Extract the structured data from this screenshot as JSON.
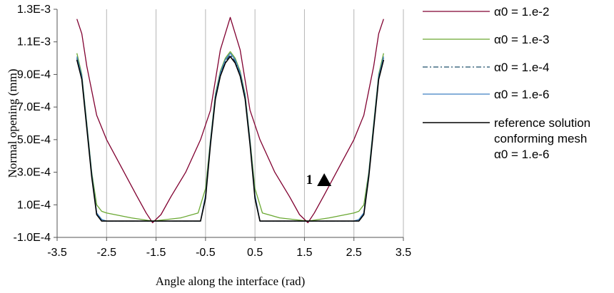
{
  "chart_data": {
    "type": "line",
    "title": "",
    "xlabel": "Angle along the interface (rad)",
    "ylabel": "Normal opening (mm)",
    "xlim": [
      -3.5,
      3.5
    ],
    "ylim": [
      -0.0001,
      0.0013
    ],
    "x_ticks": [
      -3.5,
      -2.5,
      -1.5,
      -0.5,
      0.5,
      1.5,
      2.5,
      3.5
    ],
    "x_tick_labels": [
      "-3.5",
      "-2.5",
      "-1.5",
      "-0.5",
      "0.5",
      "1.5",
      "2.5",
      "3.5"
    ],
    "y_ticks": [
      -0.0001,
      0.0001,
      0.0003,
      0.0005,
      0.0007,
      0.0009,
      0.0011,
      0.0013
    ],
    "y_tick_labels": [
      "-1.0E-4",
      "1.0E-4",
      "3.0E-4",
      "5.0E-4",
      "7.0E-4",
      "9.0E-4",
      "1.1E-3",
      "1.3E-3"
    ],
    "grid": {
      "x": true,
      "y": false
    },
    "legend_position": "right",
    "annotation": {
      "label": "1",
      "x": 1.9,
      "y": 0.00025,
      "marker": "triangle"
    },
    "series": [
      {
        "name": "α0 = 1.e-2",
        "color": "#800030",
        "dash": "solid",
        "x": [
          -3.1,
          -3.0,
          -2.9,
          -2.8,
          -2.7,
          -2.5,
          -2.2,
          -1.9,
          -1.7,
          -1.571,
          -1.4,
          -1.2,
          -0.9,
          -0.6,
          -0.4,
          -0.2,
          0,
          0.2,
          0.4,
          0.6,
          0.9,
          1.2,
          1.4,
          1.571,
          1.7,
          1.9,
          2.2,
          2.5,
          2.7,
          2.8,
          2.9,
          3.0,
          3.1
        ],
        "y": [
          0.00124,
          0.00115,
          0.00095,
          0.0008,
          0.00065,
          0.0005,
          0.00033,
          0.00016,
          5e-05,
          -1e-05,
          4e-05,
          0.00015,
          0.0003,
          0.0005,
          0.00068,
          0.00105,
          0.00125,
          0.00105,
          0.00068,
          0.0005,
          0.0003,
          0.00015,
          4e-05,
          -1e-05,
          5e-05,
          0.00016,
          0.00033,
          0.0005,
          0.00065,
          0.0008,
          0.00095,
          0.00115,
          0.00124
        ]
      },
      {
        "name": "α0 = 1.e-3",
        "color": "#6aa832",
        "dash": "solid",
        "x": [
          -3.1,
          -3.0,
          -2.9,
          -2.8,
          -2.7,
          -2.6,
          -2.5,
          -2.0,
          -1.571,
          -1.0,
          -0.65,
          -0.5,
          -0.4,
          -0.3,
          -0.2,
          -0.1,
          0,
          0.1,
          0.2,
          0.3,
          0.4,
          0.5,
          0.65,
          1.0,
          1.571,
          2.0,
          2.5,
          2.6,
          2.7,
          2.8,
          2.9,
          3.0,
          3.1
        ],
        "y": [
          0.00103,
          0.0009,
          0.0006,
          0.0003,
          0.0001,
          6e-05,
          5e-05,
          2e-05,
          0.0,
          2e-05,
          5e-05,
          0.0002,
          0.0005,
          0.00078,
          0.00092,
          0.001,
          0.00104,
          0.001,
          0.00092,
          0.00078,
          0.0005,
          0.0002,
          5e-05,
          2e-05,
          0.0,
          2e-05,
          5e-05,
          6e-05,
          0.0001,
          0.0003,
          0.0006,
          0.0009,
          0.00103
        ]
      },
      {
        "name": "α0 = 1.e-4",
        "color": "#1f4f6b",
        "dash": "dashdot",
        "x": [
          -3.1,
          -3.0,
          -2.9,
          -2.8,
          -2.7,
          -2.6,
          -2.5,
          -1.571,
          -0.6,
          -0.5,
          -0.4,
          -0.3,
          -0.2,
          -0.1,
          0,
          0.1,
          0.2,
          0.3,
          0.4,
          0.5,
          0.6,
          1.571,
          2.5,
          2.6,
          2.7,
          2.8,
          2.9,
          3.0,
          3.1
        ],
        "y": [
          0.001,
          0.00088,
          0.00058,
          0.00028,
          5e-05,
          1e-05,
          0.0,
          0.0,
          0.0,
          0.00015,
          0.00048,
          0.00076,
          0.0009,
          0.00098,
          0.00102,
          0.00098,
          0.0009,
          0.00076,
          0.00048,
          0.00015,
          0.0,
          0.0,
          0.0,
          1e-05,
          5e-05,
          0.00028,
          0.00058,
          0.00088,
          0.001
        ]
      },
      {
        "name": "α0 = 1.e-6",
        "color": "#3d7fc2",
        "dash": "solid",
        "x": [
          -3.1,
          -3.0,
          -2.9,
          -2.8,
          -2.7,
          -2.6,
          -2.5,
          -1.571,
          -0.6,
          -0.5,
          -0.4,
          -0.3,
          -0.2,
          -0.1,
          0,
          0.1,
          0.2,
          0.3,
          0.4,
          0.5,
          0.6,
          1.571,
          2.5,
          2.6,
          2.7,
          2.8,
          2.9,
          3.0,
          3.1
        ],
        "y": [
          0.00101,
          0.00089,
          0.00059,
          0.00029,
          5e-05,
          1e-05,
          0.0,
          0.0,
          0.0,
          0.00016,
          0.00049,
          0.00077,
          0.00091,
          0.00099,
          0.00103,
          0.00099,
          0.00091,
          0.00077,
          0.00049,
          0.00016,
          0.0,
          0.0,
          0.0,
          1e-05,
          5e-05,
          0.00029,
          0.00059,
          0.00089,
          0.00101
        ]
      },
      {
        "name": "reference solution conforming mesh α0 = 1.e-6",
        "legend_lines": [
          "reference solution",
          "conforming mesh",
          "α0 = 1.e-6"
        ],
        "color": "#000000",
        "dash": "solid",
        "x": [
          -3.1,
          -3.0,
          -2.9,
          -2.8,
          -2.7,
          -2.6,
          -2.5,
          -1.571,
          -0.6,
          -0.5,
          -0.4,
          -0.3,
          -0.2,
          -0.1,
          0,
          0.1,
          0.2,
          0.3,
          0.4,
          0.5,
          0.6,
          1.571,
          2.5,
          2.6,
          2.7,
          2.8,
          2.9,
          3.0,
          3.1
        ],
        "y": [
          0.00099,
          0.00087,
          0.00057,
          0.00027,
          4e-05,
          0.0,
          0.0,
          0.0,
          0.0,
          0.00014,
          0.00047,
          0.00075,
          0.00089,
          0.00097,
          0.00101,
          0.00097,
          0.00089,
          0.00075,
          0.00047,
          0.00014,
          0.0,
          0.0,
          0.0,
          0.0,
          4e-05,
          0.00027,
          0.00057,
          0.00087,
          0.00099
        ]
      }
    ]
  }
}
